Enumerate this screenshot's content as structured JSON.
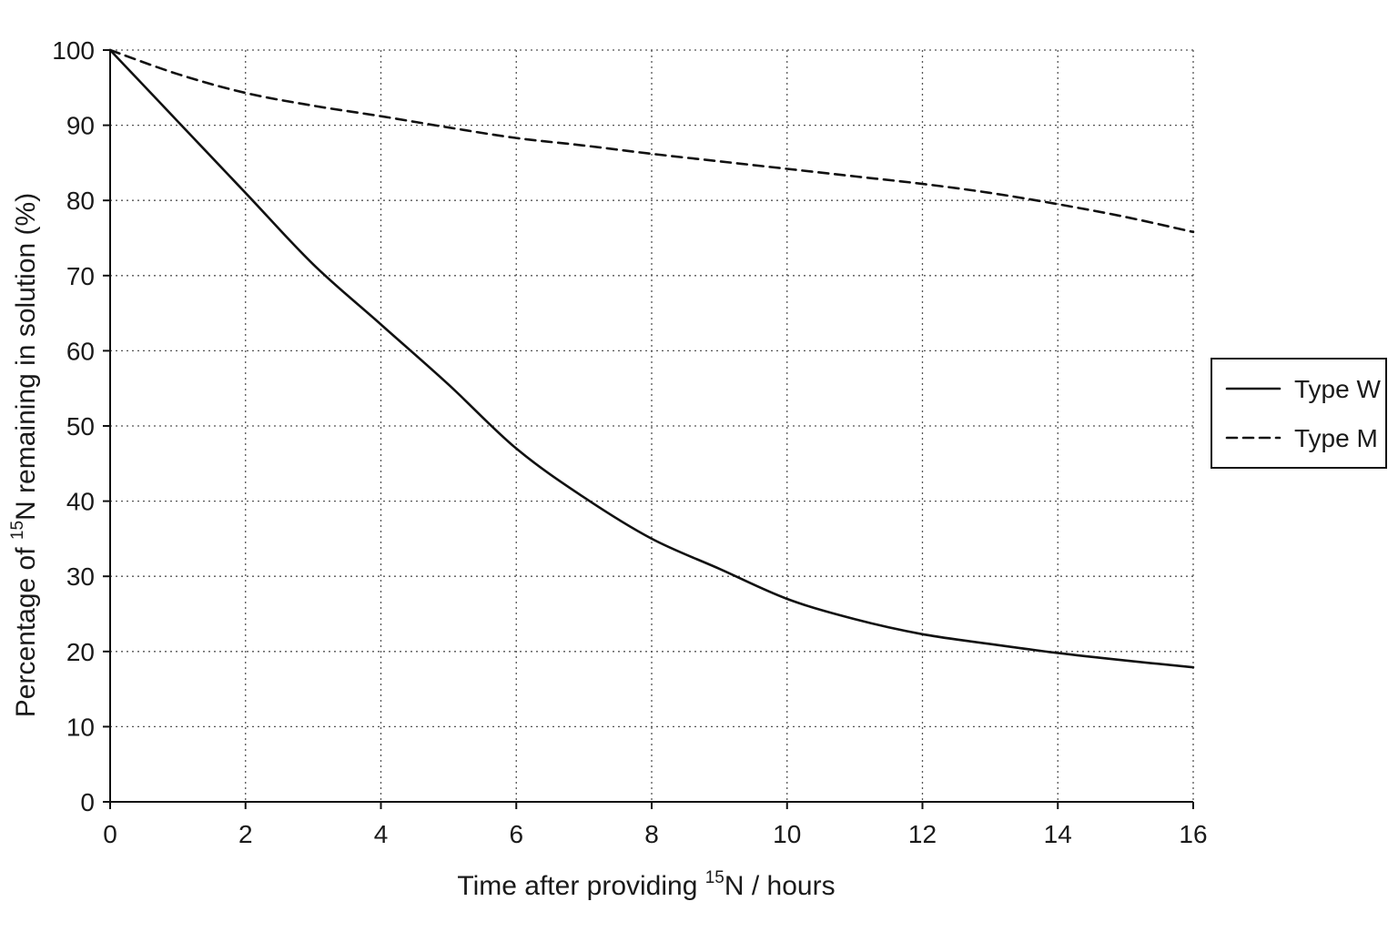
{
  "chart_data": {
    "type": "line",
    "xlabel": {
      "pre": "Time after providing ",
      "sup": "15",
      "post": "N / hours"
    },
    "ylabel": {
      "pre": "Percentage of ",
      "sup": "15",
      "post": "N remaining in solution (%)"
    },
    "xlim": [
      0,
      16
    ],
    "ylim": [
      0,
      100
    ],
    "xticks": [
      0,
      2,
      4,
      6,
      8,
      10,
      12,
      14,
      16
    ],
    "yticks": [
      0,
      10,
      20,
      30,
      40,
      50,
      60,
      70,
      80,
      90,
      100
    ],
    "grid": true,
    "legend_position": "right",
    "series": [
      {
        "name": "Type W",
        "style": "solid",
        "color": "#111111",
        "x": [
          0,
          1,
          2,
          3,
          4,
          5,
          6,
          7,
          8,
          9,
          10,
          11,
          12,
          13,
          14,
          15,
          16
        ],
        "y": [
          100,
          90.5,
          81,
          71.5,
          63.5,
          55.5,
          47,
          40.5,
          35,
          31,
          27,
          24.3,
          22.3,
          21,
          19.8,
          18.8,
          17.9
        ]
      },
      {
        "name": "Type M",
        "style": "dashed",
        "color": "#111111",
        "x": [
          0,
          1,
          2,
          3,
          4,
          5,
          6,
          7,
          8,
          9,
          10,
          11,
          12,
          13,
          14,
          15,
          16
        ],
        "y": [
          100,
          96.8,
          94.3,
          92.6,
          91.2,
          89.7,
          88.3,
          87.3,
          86.2,
          85.2,
          84.2,
          83.2,
          82.2,
          81,
          79.5,
          77.8,
          75.8
        ]
      }
    ]
  }
}
